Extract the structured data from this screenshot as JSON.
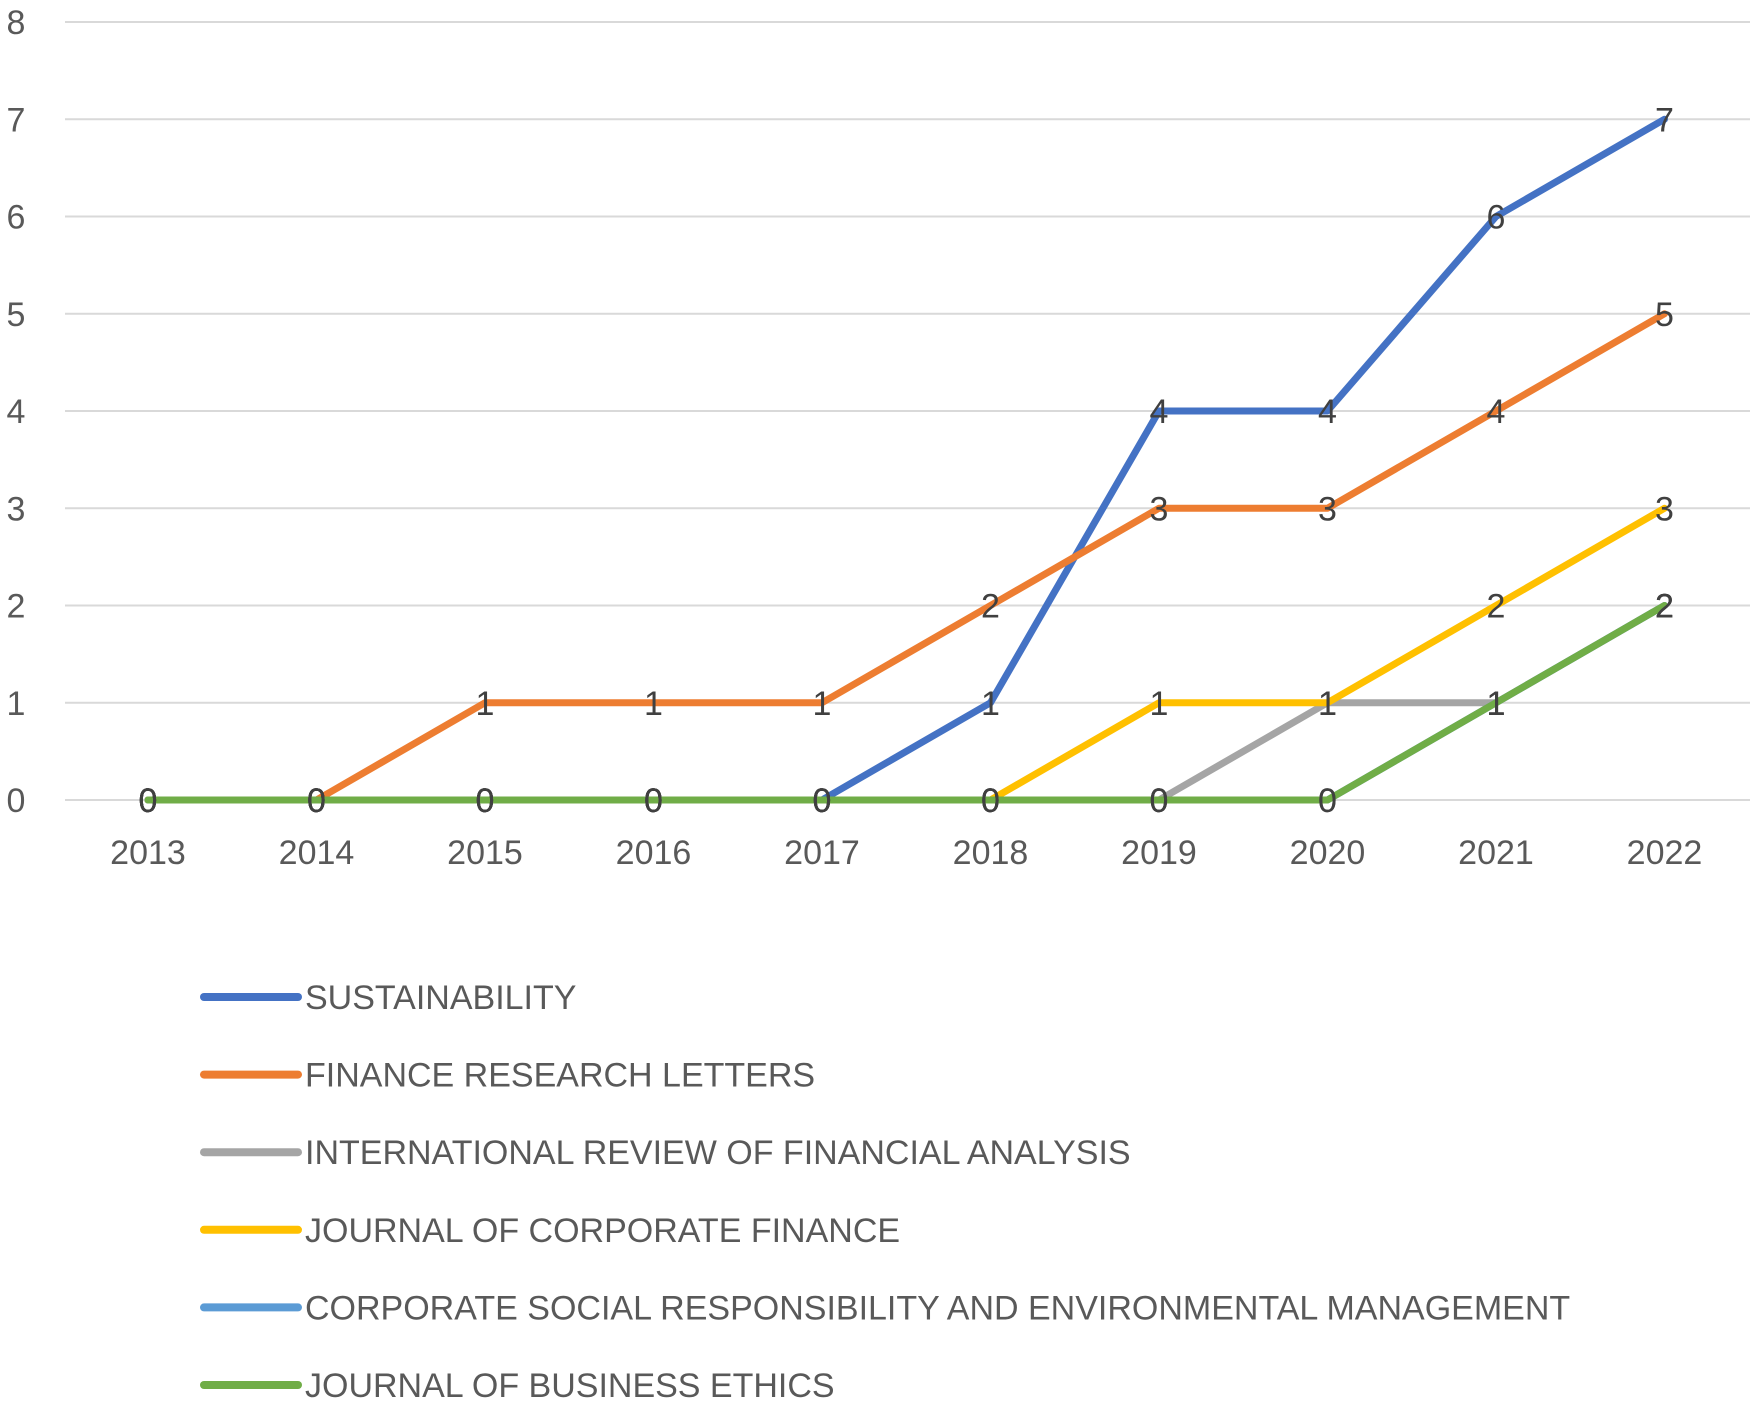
{
  "chart_data": {
    "type": "line",
    "title": "",
    "xlabel": "",
    "ylabel": "",
    "categories": [
      "2013",
      "2014",
      "2015",
      "2016",
      "2017",
      "2018",
      "2019",
      "2020",
      "2021",
      "2022"
    ],
    "ylim": [
      0,
      8
    ],
    "yticks": [
      0,
      1,
      2,
      3,
      4,
      5,
      6,
      7,
      8
    ],
    "grid": "horizontal",
    "legend_position": "bottom",
    "data_labels": true,
    "series": [
      {
        "name": "SUSTAINABILITY",
        "color": "#4472C4",
        "values": [
          0,
          0,
          0,
          0,
          0,
          1,
          4,
          4,
          6,
          7
        ]
      },
      {
        "name": "FINANCE RESEARCH LETTERS",
        "color": "#ED7D31",
        "values": [
          0,
          0,
          1,
          1,
          1,
          2,
          3,
          3,
          4,
          5
        ]
      },
      {
        "name": "INTERNATIONAL REVIEW OF FINANCIAL ANALYSIS",
        "color": "#A5A5A5",
        "values": [
          0,
          0,
          0,
          0,
          0,
          0,
          0,
          1,
          1,
          2
        ]
      },
      {
        "name": "JOURNAL OF CORPORATE FINANCE",
        "color": "#FFC000",
        "values": [
          0,
          0,
          0,
          0,
          0,
          0,
          1,
          1,
          2,
          3
        ]
      },
      {
        "name": "CORPORATE SOCIAL RESPONSIBILITY AND ENVIRONMENTAL MANAGEMENT",
        "color": "#5B9BD5",
        "values": [
          0,
          0,
          0,
          0,
          0,
          0,
          0,
          0,
          1,
          2
        ]
      },
      {
        "name": "JOURNAL OF BUSINESS ETHICS",
        "color": "#70AD47",
        "values": [
          0,
          0,
          0,
          0,
          0,
          0,
          0,
          0,
          1,
          2
        ]
      }
    ],
    "gridline_color": "#D9D9D9",
    "text_color": "#595959"
  }
}
